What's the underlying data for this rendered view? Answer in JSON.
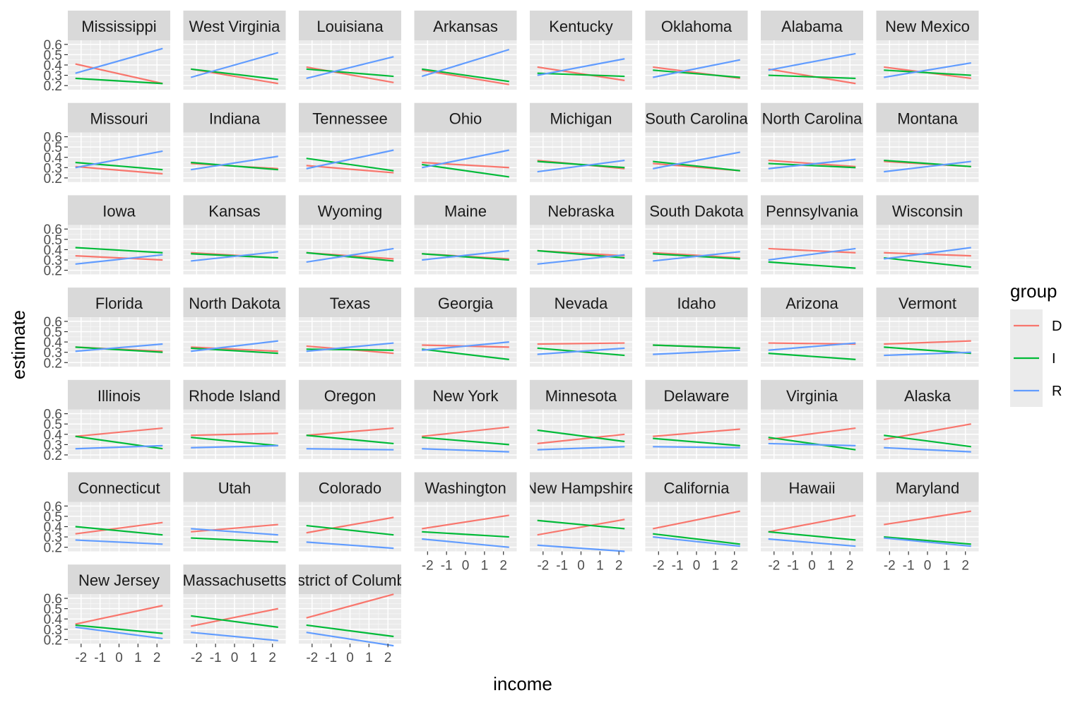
{
  "chart_data": {
    "type": "line",
    "facet_type": "wrap",
    "xlabel": "income",
    "ylabel": "estimate",
    "x_ticks": [
      "-2",
      "-1",
      "0",
      "1",
      "2"
    ],
    "y_ticks": [
      "0.2",
      "0.3",
      "0.4",
      "0.5",
      "0.6"
    ],
    "xlim": [
      -2.7,
      2.7
    ],
    "ylim": [
      0.16,
      0.64
    ],
    "line_x": [
      -2.3,
      2.3
    ],
    "grid": true,
    "legend": {
      "title": "group",
      "position": "right",
      "entries": [
        {
          "label": "D",
          "color": "#F8766D"
        },
        {
          "label": "I",
          "color": "#00BA38"
        },
        {
          "label": "R",
          "color": "#619CFF"
        }
      ]
    },
    "panels": [
      {
        "title": "Mississippi",
        "D": [
          0.41,
          0.22
        ],
        "I": [
          0.27,
          0.22
        ],
        "R": [
          0.32,
          0.56
        ]
      },
      {
        "title": "West Virginia",
        "D": [
          0.36,
          0.22
        ],
        "I": [
          0.36,
          0.26
        ],
        "R": [
          0.28,
          0.52
        ]
      },
      {
        "title": "Louisiana",
        "D": [
          0.38,
          0.23
        ],
        "I": [
          0.36,
          0.29
        ],
        "R": [
          0.27,
          0.48
        ]
      },
      {
        "title": "Arkansas",
        "D": [
          0.35,
          0.21
        ],
        "I": [
          0.36,
          0.24
        ],
        "R": [
          0.29,
          0.55
        ]
      },
      {
        "title": "Kentucky",
        "D": [
          0.38,
          0.25
        ],
        "I": [
          0.32,
          0.29
        ],
        "R": [
          0.3,
          0.46
        ]
      },
      {
        "title": "Oklahoma",
        "D": [
          0.38,
          0.27
        ],
        "I": [
          0.35,
          0.28
        ],
        "R": [
          0.28,
          0.45
        ]
      },
      {
        "title": "Alabama",
        "D": [
          0.36,
          0.22
        ],
        "I": [
          0.3,
          0.27
        ],
        "R": [
          0.35,
          0.51
        ]
      },
      {
        "title": "New Mexico",
        "D": [
          0.38,
          0.27
        ],
        "I": [
          0.35,
          0.3
        ],
        "R": [
          0.28,
          0.42
        ]
      },
      {
        "title": "Missouri",
        "D": [
          0.31,
          0.24
        ],
        "I": [
          0.35,
          0.28
        ],
        "R": [
          0.3,
          0.46
        ]
      },
      {
        "title": "Indiana",
        "D": [
          0.34,
          0.29
        ],
        "I": [
          0.35,
          0.28
        ],
        "R": [
          0.28,
          0.41
        ]
      },
      {
        "title": "Tennessee",
        "D": [
          0.32,
          0.25
        ],
        "I": [
          0.39,
          0.27
        ],
        "R": [
          0.29,
          0.47
        ]
      },
      {
        "title": "Ohio",
        "D": [
          0.35,
          0.3
        ],
        "I": [
          0.33,
          0.21
        ],
        "R": [
          0.3,
          0.47
        ]
      },
      {
        "title": "Michigan",
        "D": [
          0.37,
          0.29
        ],
        "I": [
          0.36,
          0.3
        ],
        "R": [
          0.26,
          0.37
        ]
      },
      {
        "title": "South Carolina",
        "D": [
          0.34,
          0.27
        ],
        "I": [
          0.36,
          0.27
        ],
        "R": [
          0.29,
          0.45
        ]
      },
      {
        "title": "North Carolina",
        "D": [
          0.37,
          0.31
        ],
        "I": [
          0.34,
          0.3
        ],
        "R": [
          0.29,
          0.38
        ]
      },
      {
        "title": "Montana",
        "D": [
          0.36,
          0.31
        ],
        "I": [
          0.37,
          0.31
        ],
        "R": [
          0.26,
          0.36
        ]
      },
      {
        "title": "Iowa",
        "D": [
          0.34,
          0.3
        ],
        "I": [
          0.42,
          0.37
        ],
        "R": [
          0.26,
          0.35
        ]
      },
      {
        "title": "Kansas",
        "D": [
          0.37,
          0.32
        ],
        "I": [
          0.36,
          0.32
        ],
        "R": [
          0.29,
          0.38
        ]
      },
      {
        "title": "Wyoming",
        "D": [
          0.37,
          0.31
        ],
        "I": [
          0.37,
          0.29
        ],
        "R": [
          0.28,
          0.41
        ]
      },
      {
        "title": "Maine",
        "D": [
          0.36,
          0.31
        ],
        "I": [
          0.36,
          0.3
        ],
        "R": [
          0.3,
          0.39
        ]
      },
      {
        "title": "Nebraska",
        "D": [
          0.39,
          0.34
        ],
        "I": [
          0.39,
          0.32
        ],
        "R": [
          0.26,
          0.35
        ]
      },
      {
        "title": "South Dakota",
        "D": [
          0.37,
          0.32
        ],
        "I": [
          0.36,
          0.31
        ],
        "R": [
          0.29,
          0.38
        ]
      },
      {
        "title": "Pennsylvania",
        "D": [
          0.41,
          0.37
        ],
        "I": [
          0.28,
          0.22
        ],
        "R": [
          0.3,
          0.41
        ]
      },
      {
        "title": "Wisconsin",
        "D": [
          0.37,
          0.34
        ],
        "I": [
          0.32,
          0.23
        ],
        "R": [
          0.31,
          0.42
        ]
      },
      {
        "title": "Florida",
        "D": [
          0.35,
          0.31
        ],
        "I": [
          0.35,
          0.3
        ],
        "R": [
          0.31,
          0.38
        ]
      },
      {
        "title": "North Dakota",
        "D": [
          0.35,
          0.31
        ],
        "I": [
          0.34,
          0.29
        ],
        "R": [
          0.31,
          0.41
        ]
      },
      {
        "title": "Texas",
        "D": [
          0.36,
          0.29
        ],
        "I": [
          0.33,
          0.32
        ],
        "R": [
          0.31,
          0.39
        ]
      },
      {
        "title": "Georgia",
        "D": [
          0.37,
          0.35
        ],
        "I": [
          0.33,
          0.23
        ],
        "R": [
          0.32,
          0.4
        ]
      },
      {
        "title": "Nevada",
        "D": [
          0.38,
          0.39
        ],
        "I": [
          0.34,
          0.27
        ],
        "R": [
          0.28,
          0.34
        ]
      },
      {
        "title": "Idaho",
        "D": [
          0.37,
          0.34
        ],
        "I": [
          0.37,
          0.34
        ],
        "R": [
          0.28,
          0.32
        ]
      },
      {
        "title": "Arizona",
        "D": [
          0.39,
          0.38
        ],
        "I": [
          0.29,
          0.23
        ],
        "R": [
          0.32,
          0.39
        ]
      },
      {
        "title": "Vermont",
        "D": [
          0.38,
          0.41
        ],
        "I": [
          0.35,
          0.29
        ],
        "R": [
          0.27,
          0.3
        ]
      },
      {
        "title": "Illinois",
        "D": [
          0.38,
          0.46
        ],
        "I": [
          0.38,
          0.26
        ],
        "R": [
          0.26,
          0.29
        ]
      },
      {
        "title": "Rhode Island",
        "D": [
          0.39,
          0.41
        ],
        "I": [
          0.37,
          0.29
        ],
        "R": [
          0.27,
          0.29
        ]
      },
      {
        "title": "Oregon",
        "D": [
          0.39,
          0.46
        ],
        "I": [
          0.39,
          0.31
        ],
        "R": [
          0.26,
          0.25
        ]
      },
      {
        "title": "New York",
        "D": [
          0.38,
          0.47
        ],
        "I": [
          0.37,
          0.3
        ],
        "R": [
          0.26,
          0.23
        ]
      },
      {
        "title": "Minnesota",
        "D": [
          0.31,
          0.4
        ],
        "I": [
          0.44,
          0.33
        ],
        "R": [
          0.25,
          0.28
        ]
      },
      {
        "title": "Delaware",
        "D": [
          0.38,
          0.45
        ],
        "I": [
          0.36,
          0.29
        ],
        "R": [
          0.28,
          0.27
        ]
      },
      {
        "title": "Virginia",
        "D": [
          0.35,
          0.46
        ],
        "I": [
          0.37,
          0.25
        ],
        "R": [
          0.31,
          0.29
        ]
      },
      {
        "title": "Alaska",
        "D": [
          0.35,
          0.5
        ],
        "I": [
          0.39,
          0.28
        ],
        "R": [
          0.27,
          0.23
        ]
      },
      {
        "title": "Connecticut",
        "D": [
          0.33,
          0.44
        ],
        "I": [
          0.4,
          0.32
        ],
        "R": [
          0.27,
          0.23
        ]
      },
      {
        "title": "Utah",
        "D": [
          0.35,
          0.42
        ],
        "I": [
          0.29,
          0.25
        ],
        "R": [
          0.38,
          0.32
        ]
      },
      {
        "title": "Colorado",
        "D": [
          0.34,
          0.49
        ],
        "I": [
          0.41,
          0.32
        ],
        "R": [
          0.25,
          0.19
        ]
      },
      {
        "title": "Washington",
        "D": [
          0.38,
          0.51
        ],
        "I": [
          0.35,
          0.3
        ],
        "R": [
          0.28,
          0.2
        ]
      },
      {
        "title": "New Hampshire",
        "D": [
          0.32,
          0.47
        ],
        "I": [
          0.46,
          0.38
        ],
        "R": [
          0.22,
          0.16
        ]
      },
      {
        "title": "California",
        "D": [
          0.38,
          0.55
        ],
        "I": [
          0.33,
          0.23
        ],
        "R": [
          0.3,
          0.21
        ]
      },
      {
        "title": "Hawaii",
        "D": [
          0.35,
          0.51
        ],
        "I": [
          0.35,
          0.27
        ],
        "R": [
          0.28,
          0.21
        ]
      },
      {
        "title": "Maryland",
        "D": [
          0.42,
          0.55
        ],
        "I": [
          0.3,
          0.23
        ],
        "R": [
          0.29,
          0.21
        ]
      },
      {
        "title": "New Jersey",
        "D": [
          0.35,
          0.53
        ],
        "I": [
          0.34,
          0.26
        ],
        "R": [
          0.32,
          0.21
        ]
      },
      {
        "title": "Massachusetts",
        "D": [
          0.33,
          0.5
        ],
        "I": [
          0.43,
          0.32
        ],
        "R": [
          0.27,
          0.19
        ]
      },
      {
        "title": "District of Columbia",
        "D": [
          0.41,
          0.64
        ],
        "I": [
          0.34,
          0.23
        ],
        "R": [
          0.27,
          0.14
        ]
      }
    ]
  }
}
